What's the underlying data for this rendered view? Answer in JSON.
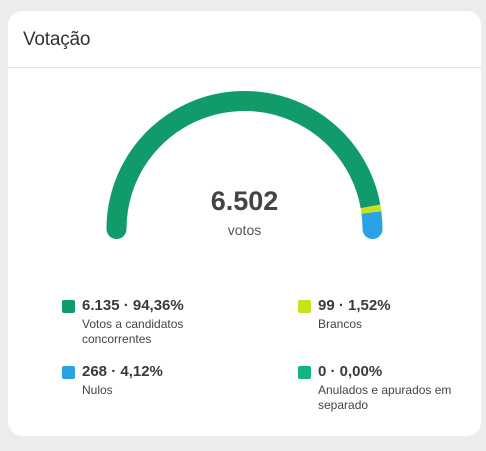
{
  "card": {
    "title": "Votação"
  },
  "total": {
    "value": "6.502",
    "label": "votos"
  },
  "legend": [
    {
      "value": "6.135 · 94,36%",
      "description": "Votos a candidatos concorrentes",
      "color": "#119a6a",
      "share": 0.9436
    },
    {
      "value": "99 · 1,52%",
      "description": "Brancos",
      "color": "#c9e01c",
      "share": 0.0152
    },
    {
      "value": "268 · 4,12%",
      "description": "Nulos",
      "color": "#29a3e6",
      "share": 0.0412
    },
    {
      "value": "0 · 0,00%",
      "description": "Anulados e apurados em separado",
      "color": "#14b383",
      "share": 0.0
    }
  ]
}
